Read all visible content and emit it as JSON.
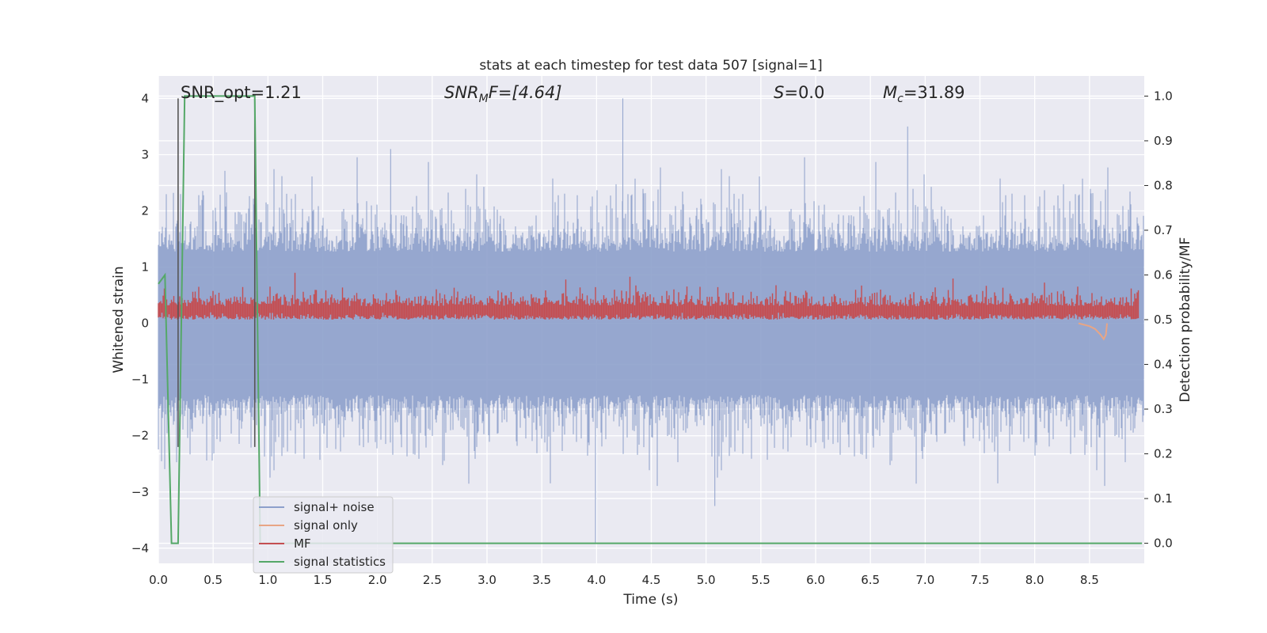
{
  "chart_data": {
    "type": "line",
    "title": "stats at each timestep for test data 507 [signal=1]",
    "xlabel": "Time (s)",
    "ylabel_left": "Whitened strain",
    "ylabel_right": "Detection probability/MF",
    "xlim": [
      0.0,
      9.0
    ],
    "ylim_left": [
      -4.27,
      4.4
    ],
    "ylim_right": [
      -0.045,
      1.045
    ],
    "x_ticks": [
      "0.0",
      "0.5",
      "1.0",
      "1.5",
      "2.0",
      "2.5",
      "3.0",
      "3.5",
      "4.0",
      "4.5",
      "5.0",
      "5.5",
      "6.0",
      "6.5",
      "7.0",
      "7.5",
      "8.0",
      "8.5"
    ],
    "y_ticks_left": [
      "−4",
      "−3",
      "−2",
      "−1",
      "0",
      "1",
      "2",
      "3",
      "4"
    ],
    "y_ticks_right": [
      "0.0",
      "0.1",
      "0.2",
      "0.3",
      "0.4",
      "0.5",
      "0.6",
      "0.7",
      "0.8",
      "0.9",
      "1.0"
    ],
    "grid": true,
    "legend_position": "lower-left",
    "annotations": {
      "snr_opt": "SNR_opt=1.21",
      "snr_mf_sym": "SNR",
      "snr_mf_sub": "M",
      "snr_mf_rest": "F=[4.64]",
      "s_sym": "S",
      "s_rest": "=0.0",
      "mc_sym": "M",
      "mc_sub": "c",
      "mc_rest": "=31.89"
    },
    "vertical_lines_x": [
      0.18,
      0.88
    ],
    "series": [
      {
        "name": "signal+ noise",
        "color": "#8da0cb",
        "axis": "left",
        "kind": "noise envelope",
        "x_range": [
          0.0,
          9.0
        ],
        "approx_envelope": [
          -1.5,
          1.5
        ],
        "peaks": [
          {
            "x": 4.24,
            "y": 4.0
          },
          {
            "x": 6.84,
            "y": 3.5
          },
          {
            "x": 2.12,
            "y": 3.1
          },
          {
            "x": 3.99,
            "y": -3.9
          },
          {
            "x": 5.08,
            "y": -3.25
          }
        ]
      },
      {
        "name": "signal only",
        "color": "#e8a585",
        "axis": "left",
        "x": [
          8.4,
          8.5,
          8.55,
          8.6,
          8.63,
          8.65,
          8.66
        ],
        "y": [
          0.0,
          -0.05,
          -0.1,
          -0.2,
          -0.28,
          -0.2,
          0.0
        ]
      },
      {
        "name": "MF",
        "color": "#c44e52",
        "axis": "right",
        "kind": "noisy band",
        "approx_band": [
          0.5,
          0.6
        ]
      },
      {
        "name": "signal statistics",
        "color": "#55a868",
        "axis": "right",
        "x": [
          0.0,
          0.06,
          0.12,
          0.18,
          0.24,
          0.88,
          0.93,
          8.98
        ],
        "y": [
          0.58,
          0.6,
          0.0,
          0.0,
          1.0,
          1.0,
          0.0,
          0.0
        ]
      }
    ]
  }
}
